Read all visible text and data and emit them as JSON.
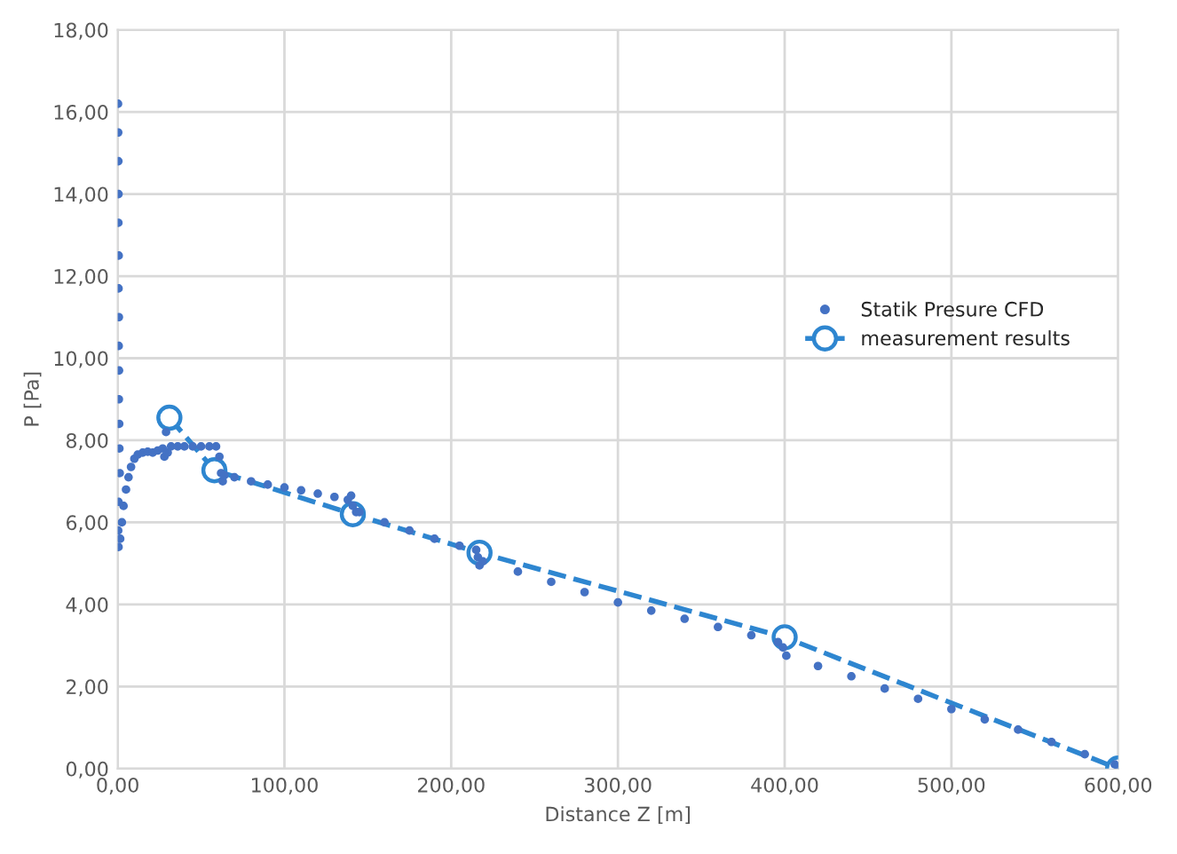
{
  "chart_data": {
    "type": "scatter",
    "xlabel": "Distance Z [m]",
    "ylabel": "P [Pa]",
    "xlim": [
      0,
      600
    ],
    "ylim": [
      0,
      18
    ],
    "xticks": [
      {
        "value": 0,
        "label": "0,00"
      },
      {
        "value": 100,
        "label": "100,00"
      },
      {
        "value": 200,
        "label": "200,00"
      },
      {
        "value": 300,
        "label": "300,00"
      },
      {
        "value": 400,
        "label": "400,00"
      },
      {
        "value": 500,
        "label": "500,00"
      },
      {
        "value": 600,
        "label": "600,00"
      }
    ],
    "yticks": [
      {
        "value": 0,
        "label": "0,00"
      },
      {
        "value": 2,
        "label": "2,00"
      },
      {
        "value": 4,
        "label": "4,00"
      },
      {
        "value": 6,
        "label": "6,00"
      },
      {
        "value": 8,
        "label": "8,00"
      },
      {
        "value": 10,
        "label": "10,00"
      },
      {
        "value": 12,
        "label": "12,00"
      },
      {
        "value": 14,
        "label": "14,00"
      },
      {
        "value": 16,
        "label": "16,00"
      },
      {
        "value": 18,
        "label": "18,00"
      }
    ],
    "grid": true,
    "legend": "right",
    "series": [
      {
        "name": "Statik Presure CFD",
        "marker": "circle",
        "color": "#4472c4",
        "x": [
          0.2,
          0.3,
          0.4,
          0.5,
          0.4,
          0.6,
          0.5,
          0.7,
          0.6,
          0.8,
          0.7,
          0.9,
          1.0,
          1.2,
          0.5,
          0.3,
          0.5,
          1.5,
          2.5,
          3.5,
          5,
          6.5,
          8,
          10,
          12,
          15,
          18,
          21,
          24,
          27,
          28,
          29,
          30,
          32,
          36,
          40,
          45,
          50,
          55,
          59,
          61,
          62,
          63,
          64,
          70,
          80,
          90,
          100,
          110,
          120,
          130,
          138,
          140,
          141,
          143,
          145,
          160,
          175,
          190,
          205,
          215,
          216,
          217,
          219,
          240,
          260,
          280,
          300,
          320,
          340,
          360,
          380,
          396,
          399,
          401,
          420,
          440,
          460,
          480,
          500,
          520,
          540,
          560,
          580,
          598,
          600
        ],
        "values": [
          16.2,
          15.5,
          14.8,
          14.0,
          13.3,
          12.5,
          11.7,
          11.0,
          10.3,
          9.7,
          9.0,
          8.4,
          7.8,
          7.2,
          6.5,
          5.8,
          5.4,
          5.6,
          6.0,
          6.4,
          6.8,
          7.1,
          7.35,
          7.55,
          7.65,
          7.7,
          7.72,
          7.7,
          7.75,
          7.8,
          7.6,
          8.2,
          7.7,
          7.85,
          7.85,
          7.85,
          7.85,
          7.85,
          7.85,
          7.85,
          7.6,
          7.2,
          7.0,
          7.15,
          7.1,
          7.0,
          6.92,
          6.85,
          6.78,
          6.7,
          6.62,
          6.55,
          6.65,
          6.4,
          6.25,
          6.25,
          6.0,
          5.8,
          5.6,
          5.43,
          5.33,
          5.15,
          4.95,
          5.05,
          4.8,
          4.55,
          4.3,
          4.05,
          3.85,
          3.65,
          3.45,
          3.25,
          3.08,
          2.95,
          2.75,
          2.5,
          2.25,
          1.95,
          1.7,
          1.45,
          1.2,
          0.95,
          0.65,
          0.35,
          0.1,
          0.05
        ]
      },
      {
        "name": "measurement results",
        "type": "line",
        "marker": "circle",
        "line_style": "dashed",
        "color": "#2e86d0",
        "x": [
          31,
          58,
          141,
          217,
          400,
          600
        ],
        "values": [
          8.55,
          7.27,
          6.2,
          5.26,
          3.2,
          0.0
        ]
      }
    ]
  }
}
